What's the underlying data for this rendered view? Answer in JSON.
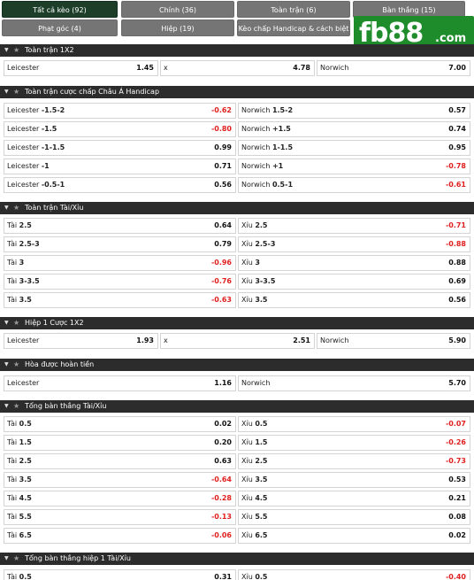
{
  "tabs": [
    {
      "label": "Tất cả kèo (92)"
    },
    {
      "label": "Chính (36)"
    },
    {
      "label": "Toàn trận (6)"
    },
    {
      "label": "Bàn thắng (15)"
    },
    {
      "label": "Phạt góc (4)"
    },
    {
      "label": "Hiệp (19)"
    },
    {
      "label": "Kèo chấp Handicap & cách biệt (5)"
    }
  ],
  "logo": {
    "text": "fb88",
    "suffix": ".com"
  },
  "sections": {
    "s1": {
      "title": "Toàn trận 1X2",
      "cells": [
        {
          "label": "Leicester",
          "value": "1.45"
        },
        {
          "label": "x",
          "value": "4.78"
        },
        {
          "label": "Norwich",
          "value": "7.00"
        }
      ]
    },
    "s2": {
      "title": "Toàn trận cược chấp Châu Á Handicap",
      "rows": [
        {
          "left": {
            "team": "Leicester",
            "hc": "-1.5-2",
            "value": "-0.62"
          },
          "right": {
            "team": "Norwich",
            "hc": "1.5-2",
            "value": "0.57"
          }
        },
        {
          "left": {
            "team": "Leicester",
            "hc": "-1.5",
            "value": "-0.80"
          },
          "right": {
            "team": "Norwich",
            "hc": "+1.5",
            "value": "0.74"
          }
        },
        {
          "left": {
            "team": "Leicester",
            "hc": "-1-1.5",
            "value": "0.99"
          },
          "right": {
            "team": "Norwich",
            "hc": "1-1.5",
            "value": "0.95"
          }
        },
        {
          "left": {
            "team": "Leicester",
            "hc": "-1",
            "value": "0.71"
          },
          "right": {
            "team": "Norwich",
            "hc": "+1",
            "value": "-0.78"
          }
        },
        {
          "left": {
            "team": "Leicester",
            "hc": "-0.5-1",
            "value": "0.56"
          },
          "right": {
            "team": "Norwich",
            "hc": "0.5-1",
            "value": "-0.61"
          }
        }
      ]
    },
    "s3": {
      "title": "Toàn trận Tài/Xỉu",
      "rows": [
        {
          "left": {
            "team": "Tài",
            "hc": "2.5",
            "value": "0.64"
          },
          "right": {
            "team": "Xỉu",
            "hc": "2.5",
            "value": "-0.71"
          }
        },
        {
          "left": {
            "team": "Tài",
            "hc": "2.5-3",
            "value": "0.79"
          },
          "right": {
            "team": "Xỉu",
            "hc": "2.5-3",
            "value": "-0.88"
          }
        },
        {
          "left": {
            "team": "Tài",
            "hc": "3",
            "value": "-0.96"
          },
          "right": {
            "team": "Xỉu",
            "hc": "3",
            "value": "0.88"
          }
        },
        {
          "left": {
            "team": "Tài",
            "hc": "3-3.5",
            "value": "-0.76"
          },
          "right": {
            "team": "Xỉu",
            "hc": "3-3.5",
            "value": "0.69"
          }
        },
        {
          "left": {
            "team": "Tài",
            "hc": "3.5",
            "value": "-0.63"
          },
          "right": {
            "team": "Xỉu",
            "hc": "3.5",
            "value": "0.56"
          }
        }
      ]
    },
    "s4": {
      "title": "Hiệp 1 Cược 1X2",
      "cells": [
        {
          "label": "Leicester",
          "value": "1.93"
        },
        {
          "label": "x",
          "value": "2.51"
        },
        {
          "label": "Norwich",
          "value": "5.90"
        }
      ]
    },
    "s5": {
      "title": "Hòa được hoàn tiền",
      "cells": [
        {
          "label": "Leicester",
          "value": "1.16"
        },
        {
          "label": "Norwich",
          "value": "5.70"
        }
      ]
    },
    "s6": {
      "title": "Tổng bàn thắng Tài/Xỉu",
      "rows": [
        {
          "left": {
            "team": "Tài",
            "hc": "0.5",
            "value": "0.02"
          },
          "right": {
            "team": "Xỉu",
            "hc": "0.5",
            "value": "-0.07"
          }
        },
        {
          "left": {
            "team": "Tài",
            "hc": "1.5",
            "value": "0.20"
          },
          "right": {
            "team": "Xỉu",
            "hc": "1.5",
            "value": "-0.26"
          }
        },
        {
          "left": {
            "team": "Tài",
            "hc": "2.5",
            "value": "0.63"
          },
          "right": {
            "team": "Xỉu",
            "hc": "2.5",
            "value": "-0.73"
          }
        },
        {
          "left": {
            "team": "Tài",
            "hc": "3.5",
            "value": "-0.64"
          },
          "right": {
            "team": "Xỉu",
            "hc": "3.5",
            "value": "0.53"
          }
        },
        {
          "left": {
            "team": "Tài",
            "hc": "4.5",
            "value": "-0.28"
          },
          "right": {
            "team": "Xỉu",
            "hc": "4.5",
            "value": "0.21"
          }
        },
        {
          "left": {
            "team": "Tài",
            "hc": "5.5",
            "value": "-0.13"
          },
          "right": {
            "team": "Xỉu",
            "hc": "5.5",
            "value": "0.08"
          }
        },
        {
          "left": {
            "team": "Tài",
            "hc": "6.5",
            "value": "-0.06"
          },
          "right": {
            "team": "Xỉu",
            "hc": "6.5",
            "value": "0.02"
          }
        }
      ]
    },
    "s7": {
      "title": "Tổng bàn thắng hiệp 1 Tài/Xỉu",
      "rows": [
        {
          "left": {
            "team": "Tài",
            "hc": "0.5",
            "value": "0.31"
          },
          "right": {
            "team": "Xỉu",
            "hc": "0.5",
            "value": "-0.40"
          }
        }
      ]
    }
  }
}
